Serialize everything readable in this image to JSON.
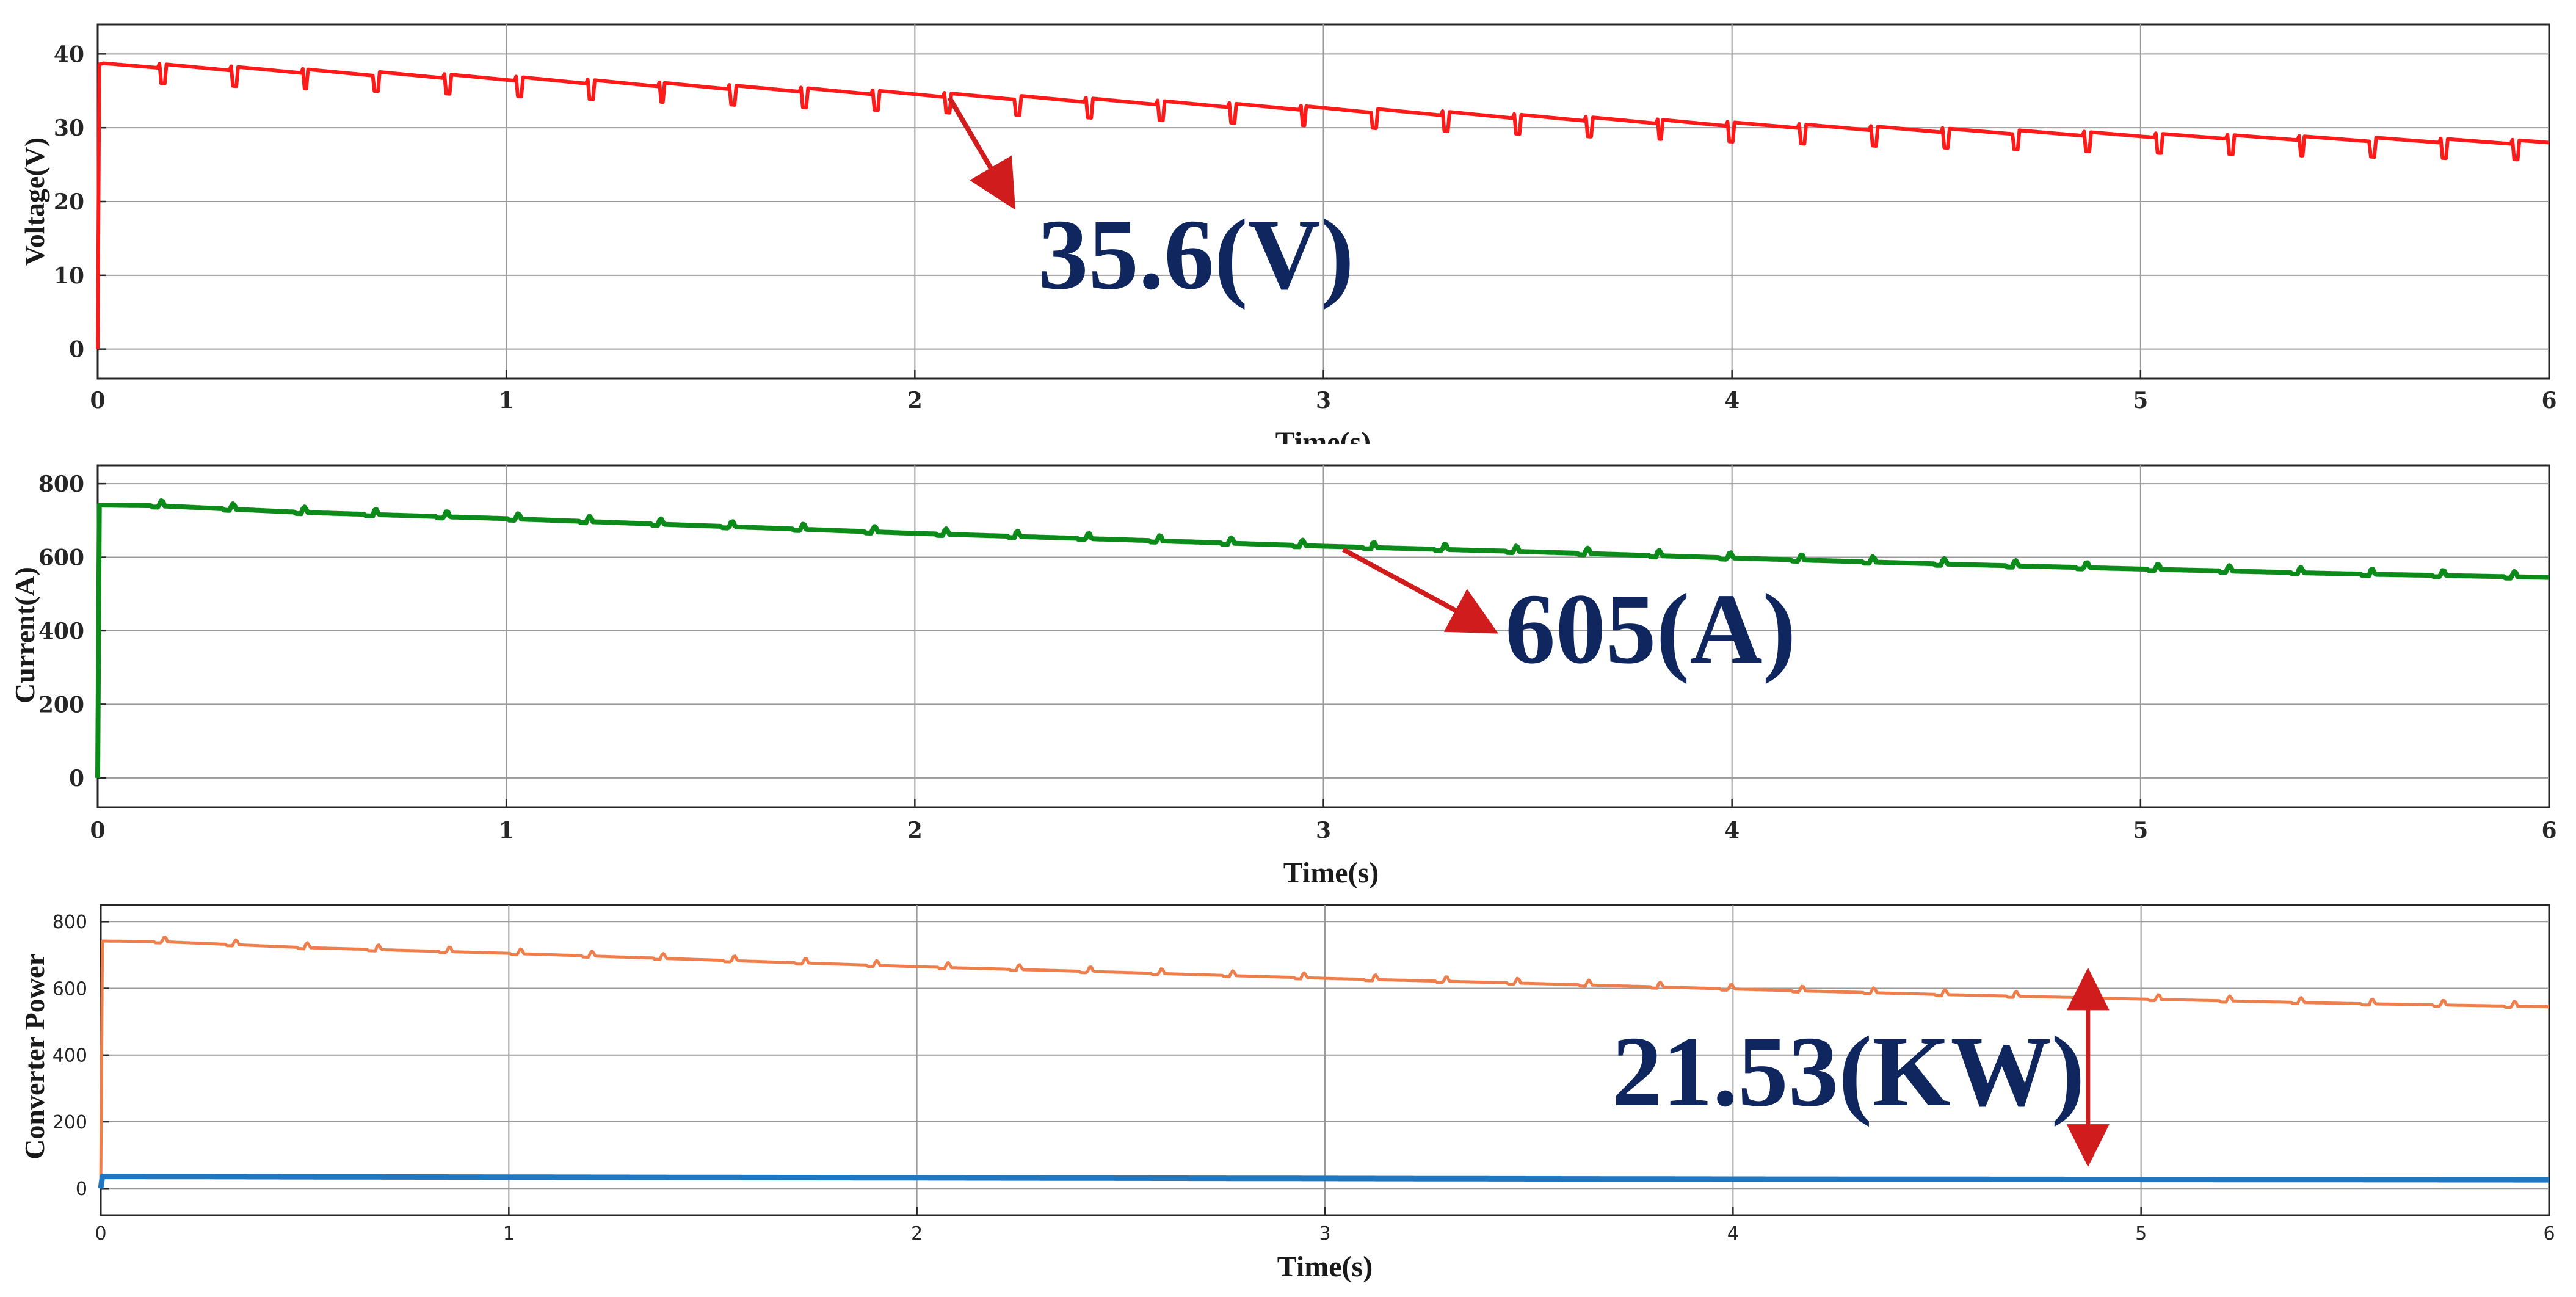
{
  "chart_data": [
    {
      "type": "line",
      "xlabel": "Time(s)",
      "ylabel": "Voltage(V)",
      "xlim": [
        0,
        6
      ],
      "ylim": [
        -4,
        44
      ],
      "xticks": [
        0,
        1,
        2,
        3,
        4,
        5,
        6
      ],
      "yticks": [
        0,
        10,
        20,
        30,
        40
      ],
      "grid": true,
      "series": [
        {
          "color": "#ff1a1a",
          "x": [
            0,
            0.15,
            0.5,
            1.0,
            1.5,
            2.0,
            2.5,
            3.0,
            3.5,
            4.0,
            4.5,
            5.0,
            5.5,
            6.0
          ],
          "y": [
            38.6,
            38.4,
            37.7,
            36.7,
            35.6,
            34.6,
            33.6,
            32.6,
            31.5,
            30.5,
            29.7,
            29.0,
            28.5,
            28.0
          ],
          "ripple": true
        }
      ],
      "annotations": [
        {
          "text": "35.6(V)",
          "point": [
            2.08,
            34.4
          ]
        }
      ]
    },
    {
      "type": "line",
      "xlabel": "Time(s)",
      "ylabel": "Current(A)",
      "xlim": [
        0,
        6
      ],
      "ylim": [
        -80,
        850
      ],
      "xticks": [
        0,
        1,
        2,
        3,
        4,
        5,
        6
      ],
      "yticks": [
        0,
        200,
        400,
        600,
        800
      ],
      "grid": true,
      "series": [
        {
          "color": "#0c8a1a",
          "x": [
            0,
            0.15,
            0.5,
            1.0,
            1.5,
            2.0,
            2.5,
            3.0,
            3.5,
            4.0,
            4.5,
            5.0,
            5.5,
            6.0
          ],
          "y": [
            742,
            740,
            722,
            705,
            685,
            665,
            648,
            630,
            615,
            598,
            582,
            568,
            555,
            545
          ],
          "ripple": true
        }
      ],
      "annotations": [
        {
          "text": "605(A)",
          "point": [
            3.05,
            622
          ]
        }
      ]
    },
    {
      "type": "line",
      "xlabel": "Time(s)",
      "ylabel": "Converter Power",
      "xlim": [
        0,
        6
      ],
      "ylim": [
        -80,
        850
      ],
      "xticks": [
        0,
        1,
        2,
        3,
        4,
        5,
        6
      ],
      "yticks": [
        0,
        200,
        400,
        600,
        800
      ],
      "grid": true,
      "series": [
        {
          "color": "#ee7f4d",
          "x": [
            0,
            0.15,
            0.5,
            1.0,
            1.5,
            2.0,
            2.5,
            3.0,
            3.5,
            4.0,
            4.5,
            5.0,
            5.5,
            6.0
          ],
          "y": [
            742,
            740,
            722,
            705,
            685,
            665,
            648,
            630,
            615,
            598,
            582,
            568,
            555,
            545
          ],
          "ripple": true
        },
        {
          "color": "#1f77c2",
          "x": [
            0,
            0.1,
            1.0,
            2.0,
            3.0,
            4.0,
            5.0,
            6.0
          ],
          "y": [
            36,
            36,
            34,
            32,
            30,
            28,
            27,
            26
          ],
          "ripple": false
        }
      ],
      "annotations": [
        {
          "text": "21.53(KW)",
          "range": [
            4.87,
            90,
            560
          ]
        }
      ]
    }
  ]
}
